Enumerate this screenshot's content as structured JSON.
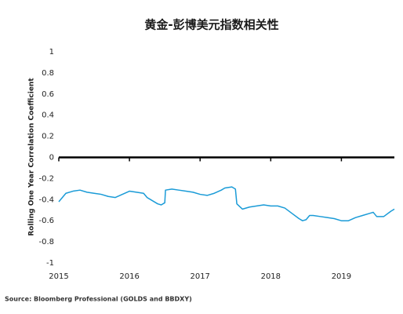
{
  "chart_data": {
    "type": "line",
    "title": "黄金-彭博美元指数相关性",
    "y_label": "Rolling One Year Correlation Coefficient",
    "source": "Source: Bloomberg Professional (GOLDS and BBDXY)",
    "xlim": [
      2015,
      2019.75
    ],
    "xticks": [
      2015,
      2016,
      2017,
      2018,
      2019
    ],
    "ylim": [
      -1,
      1
    ],
    "yticks": [
      1,
      0.8,
      0.6,
      0.4,
      0.2,
      0,
      -0.2,
      -0.4,
      -0.6,
      -0.8,
      -1
    ],
    "grid": false,
    "series": [
      {
        "color": "#1a9bd7",
        "x": [
          2015.0,
          2015.05,
          2015.1,
          2015.2,
          2015.3,
          2015.4,
          2015.5,
          2015.6,
          2015.7,
          2015.8,
          2015.9,
          2016.0,
          2016.1,
          2016.2,
          2016.25,
          2016.3,
          2016.4,
          2016.45,
          2016.5,
          2016.51,
          2016.6,
          2016.7,
          2016.8,
          2016.9,
          2017.0,
          2017.1,
          2017.2,
          2017.3,
          2017.35,
          2017.45,
          2017.5,
          2017.52,
          2017.6,
          2017.7,
          2017.8,
          2017.9,
          2018.0,
          2018.1,
          2018.2,
          2018.3,
          2018.4,
          2018.45,
          2018.5,
          2018.55,
          2018.6,
          2018.7,
          2018.8,
          2018.9,
          2019.0,
          2019.1,
          2019.2,
          2019.3,
          2019.4,
          2019.45,
          2019.5,
          2019.6,
          2019.7,
          2019.75
        ],
        "values": [
          -0.42,
          -0.38,
          -0.34,
          -0.32,
          -0.31,
          -0.33,
          -0.34,
          -0.35,
          -0.37,
          -0.38,
          -0.35,
          -0.32,
          -0.33,
          -0.34,
          -0.38,
          -0.4,
          -0.44,
          -0.45,
          -0.43,
          -0.31,
          -0.3,
          -0.31,
          -0.32,
          -0.33,
          -0.35,
          -0.36,
          -0.34,
          -0.31,
          -0.29,
          -0.28,
          -0.3,
          -0.44,
          -0.49,
          -0.47,
          -0.46,
          -0.45,
          -0.46,
          -0.46,
          -0.48,
          -0.53,
          -0.58,
          -0.6,
          -0.59,
          -0.55,
          -0.55,
          -0.56,
          -0.57,
          -0.58,
          -0.6,
          -0.6,
          -0.57,
          -0.55,
          -0.53,
          -0.52,
          -0.56,
          -0.56,
          -0.51,
          -0.49
        ]
      }
    ]
  }
}
